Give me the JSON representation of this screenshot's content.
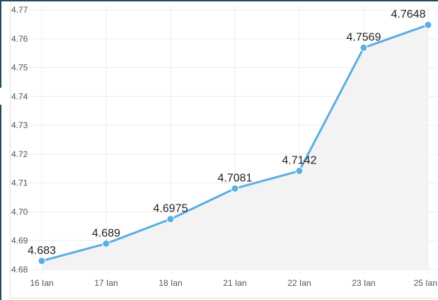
{
  "chart_data": {
    "type": "area",
    "categories": [
      "16 Ian",
      "17 Ian",
      "18 Ian",
      "21 Ian",
      "22 Ian",
      "23 Ian",
      "25 Ian"
    ],
    "series": [
      {
        "values": [
          4.683,
          4.689,
          4.6975,
          4.7081,
          4.7142,
          4.7569,
          4.7648
        ]
      }
    ],
    "data_labels": [
      "4.683",
      "4.689",
      "4.6975",
      "4.7081",
      "4.7142",
      "4.7569",
      "4.7648"
    ],
    "y_ticks": [
      "4.68",
      "4.69",
      "4.70",
      "4.71",
      "4.72",
      "4.73",
      "4.74",
      "4.75",
      "4.76",
      "4.77"
    ],
    "ylim": [
      4.68,
      4.77
    ],
    "grid": true,
    "legend": "none",
    "colors": {
      "line": "#5aaee3",
      "marker": "#5aaee3",
      "fill": "#f3f3f3",
      "grid": "#ececec",
      "frame": "#1f4e5f"
    }
  }
}
